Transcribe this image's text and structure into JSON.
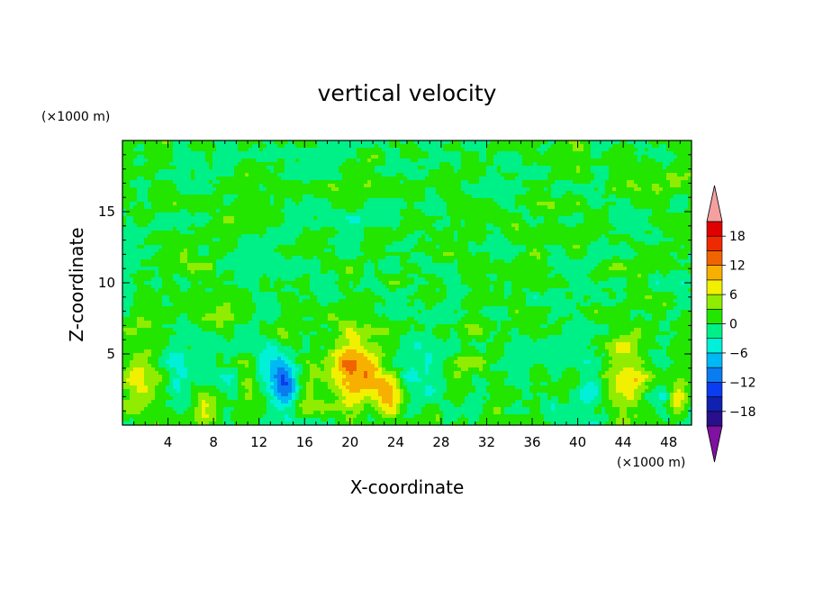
{
  "chart_data": {
    "type": "heatmap",
    "title": "vertical velocity",
    "xlabel": "X-coordinate",
    "ylabel": "Z-coordinate",
    "x_unit": "(×1000 m)",
    "y_unit": "(×1000 m)",
    "xlim": [
      0,
      50
    ],
    "ylim": [
      0,
      20
    ],
    "x_ticks": [
      4,
      8,
      12,
      16,
      20,
      24,
      28,
      32,
      36,
      40,
      44,
      48
    ],
    "y_ticks": [
      5,
      10,
      15
    ],
    "colorbar": {
      "tick_labels": [
        "18",
        "12",
        "6",
        "0",
        "−6",
        "−12",
        "−18"
      ],
      "tick_values": [
        18,
        12,
        6,
        0,
        -6,
        -12,
        -18
      ],
      "levels": [
        -21,
        -18,
        -15,
        -12,
        -9,
        -6,
        -3,
        0,
        3,
        6,
        9,
        12,
        15,
        18,
        21
      ],
      "colors": [
        "#7f12a0",
        "#2a0f8c",
        "#1020b0",
        "#0a3cf0",
        "#0a7cf0",
        "#00b8f4",
        "#00f0d8",
        "#00f088",
        "#22e600",
        "#90ec00",
        "#f0f000",
        "#f8b000",
        "#f06400",
        "#f02a00",
        "#e00000",
        "#f4a0a0"
      ],
      "extend": "both"
    },
    "features": [
      {
        "x": 1.5,
        "z": 3.0,
        "w": 7.0,
        "sx": 1.2,
        "sz": 1.8
      },
      {
        "x": 4.8,
        "z": 3.0,
        "w": -4.0,
        "sx": 1.0,
        "sz": 2.0
      },
      {
        "x": 7.3,
        "z": 1.4,
        "w": 5.0,
        "sx": 0.6,
        "sz": 0.9
      },
      {
        "x": 9.5,
        "z": 2.2,
        "w": -3.0,
        "sx": 0.7,
        "sz": 1.2
      },
      {
        "x": 11.0,
        "z": 3.0,
        "w": 2.5,
        "sx": 0.6,
        "sz": 1.4
      },
      {
        "x": 14.2,
        "z": 2.8,
        "w": -10.0,
        "sx": 0.8,
        "sz": 1.4
      },
      {
        "x": 13.6,
        "z": 4.0,
        "w": -3.0,
        "sx": 1.6,
        "sz": 2.2
      },
      {
        "x": 16.3,
        "z": 2.6,
        "w": 3.0,
        "sx": 0.7,
        "sz": 1.2
      },
      {
        "x": 20.3,
        "z": 4.0,
        "w": 11.5,
        "sx": 1.7,
        "sz": 1.8
      },
      {
        "x": 23.3,
        "z": 2.1,
        "w": 7.5,
        "sx": 0.9,
        "sz": 1.0
      },
      {
        "x": 26.3,
        "z": 5.0,
        "w": -5.0,
        "sx": 1.6,
        "sz": 1.5
      },
      {
        "x": 14.0,
        "z": 6.0,
        "w": 3.5,
        "sx": 0.4,
        "sz": 0.6
      },
      {
        "x": 30.0,
        "z": 4.0,
        "w": 2.5,
        "sx": 1.2,
        "sz": 1.5
      },
      {
        "x": 35.0,
        "z": 3.0,
        "w": -3.5,
        "sx": 0.8,
        "sz": 1.1
      },
      {
        "x": 37.8,
        "z": 2.8,
        "w": -3.0,
        "sx": 0.5,
        "sz": 1.4
      },
      {
        "x": 41.2,
        "z": 2.5,
        "w": -5.5,
        "sx": 0.9,
        "sz": 1.5
      },
      {
        "x": 44.3,
        "z": 3.6,
        "w": 8.5,
        "sx": 1.3,
        "sz": 2.0
      },
      {
        "x": 48.8,
        "z": 1.8,
        "w": 6.0,
        "sx": 0.5,
        "sz": 0.9
      },
      {
        "x": 47.0,
        "z": 2.0,
        "w": -2.5,
        "sx": 0.8,
        "sz": 1.2
      }
    ]
  }
}
